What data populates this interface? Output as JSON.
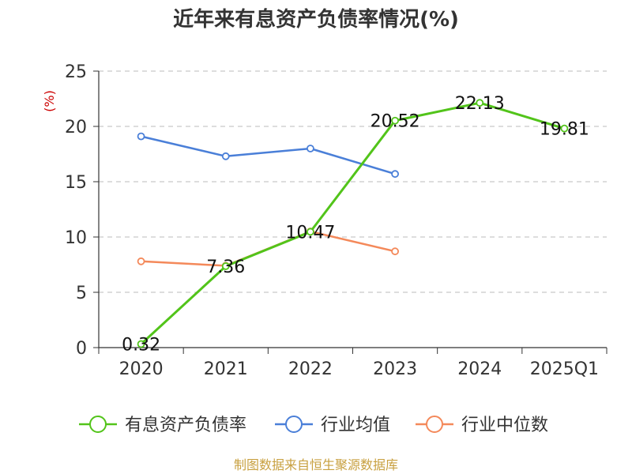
{
  "chart_data": {
    "type": "line",
    "title": "近年来有息资产负债率情况(%)",
    "unit_label": "(%)",
    "categories": [
      "2020",
      "2021",
      "2022",
      "2023",
      "2024",
      "2025Q1"
    ],
    "ylim": [
      0,
      25
    ],
    "yticks": [
      "0",
      "5",
      "10",
      "15",
      "20",
      "25"
    ],
    "grid": true,
    "legend_position": "bottom",
    "series": [
      {
        "name": "有息资产负债率",
        "color": "#52c41a",
        "values": [
          0.32,
          7.36,
          10.47,
          20.52,
          22.13,
          19.81
        ],
        "labels": [
          "0.32",
          "7.36",
          "10.47",
          "20.52",
          "22.13",
          "19.81"
        ]
      },
      {
        "name": "行业均值",
        "color": "#4a7fd8",
        "values": [
          19.1,
          17.3,
          18.0,
          15.7,
          null,
          null
        ]
      },
      {
        "name": "行业中位数",
        "color": "#f4895a",
        "values": [
          7.8,
          7.4,
          10.5,
          8.7,
          null,
          null
        ]
      }
    ]
  },
  "source_text": "制图数据来自恒生聚源数据库",
  "colors": {
    "unit": "#cc0000",
    "source": "#c8a040",
    "grid": "#bbbbbb",
    "axis": "#333333"
  }
}
